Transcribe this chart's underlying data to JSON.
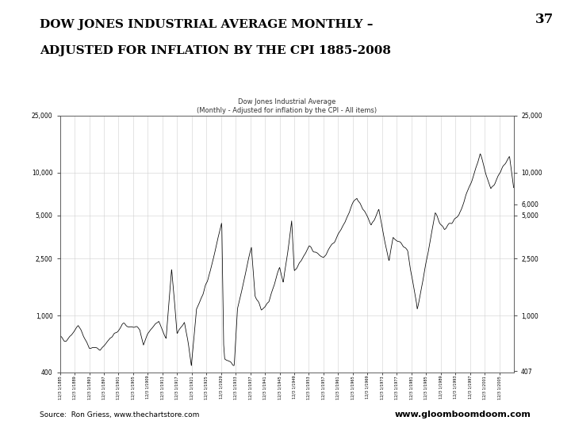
{
  "slide_number": "37",
  "main_title_line1": "DOW JONES INDUSTRIAL AVERAGE MONTHLY –",
  "main_title_line2": "ADJUSTED FOR INFLATION BY THE CPI 1885-2008",
  "chart_title_line1": "Dow Jones Industrial Average",
  "chart_title_line2": "(Monthly - Adjusted for inflation by the CPI - All items)",
  "source_left": "Source:  Ron Griess, www.thechartstore.com",
  "source_right": "www.gloomboomdoom.com",
  "x_start_year": 1885,
  "x_end_year": 2009,
  "y_min": 400,
  "y_max": 25000,
  "left_yticks": [
    400,
    1000,
    2500,
    5000,
    10000,
    25000
  ],
  "left_yticklabels": [
    "400",
    "1,000",
    "2,500",
    "5,000",
    "10,000",
    "25,000"
  ],
  "right_yticks": [
    407,
    1000,
    2500,
    5000,
    6000,
    10000,
    25000
  ],
  "right_yticklabels": [
    "407",
    "1,000",
    "2,500",
    "5,000",
    "6,000",
    "10,000",
    "25,000"
  ],
  "background_color": "#ffffff",
  "chart_bg_color": "#ffffff",
  "line_color": "#000000",
  "anchors_years": [
    1885.0,
    1886.75,
    1890,
    1893,
    1896,
    1899.6,
    1902,
    1906.8,
    1907.8,
    1909,
    1912,
    1914,
    1915.5,
    1917,
    1919,
    1920.9,
    1922.3,
    1924,
    1926,
    1929.2,
    1929.7,
    1930,
    1932.6,
    1933.5,
    1937.3,
    1938.3,
    1940,
    1942.1,
    1943,
    1945,
    1946,
    1948.3,
    1949,
    1953,
    1957,
    1960,
    1966.1,
    1970,
    1972.1,
    1974.9,
    1976,
    1980,
    1982.6,
    1987.5,
    1990,
    1994,
    1999.8,
    2002.7,
    2007.8,
    2008.9
  ],
  "anchors_vals": [
    700,
    677,
    850,
    600,
    580,
    719,
    850,
    819,
    620,
    750,
    900,
    700,
    2088,
    750,
    900,
    450,
    1130,
    1400,
    2000,
    4632,
    645,
    500,
    450,
    1100,
    2983,
    1400,
    1100,
    1248,
    1500,
    2200,
    1700,
    4497,
    2000,
    3000,
    2500,
    3200,
    6814,
    4200,
    5425,
    2375,
    3500,
    2800,
    1104,
    5102,
    4000,
    5000,
    13279,
    7449,
    13000,
    8000
  ]
}
